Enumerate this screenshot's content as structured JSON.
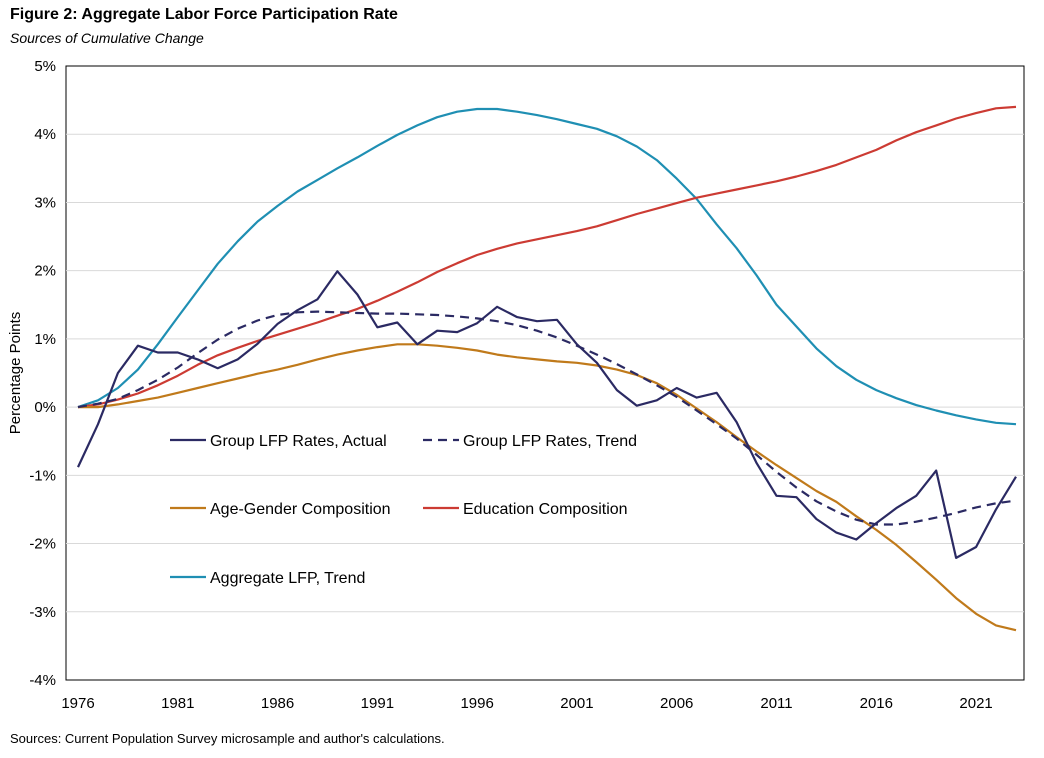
{
  "title": "Figure 2: Aggregate Labor Force Participation Rate",
  "subtitle": "Sources of Cumulative Change",
  "source": "Sources: Current Population Survey microsample and author's calculations.",
  "chart_data": {
    "type": "line",
    "ylabel": "Percentage Points",
    "xlabel": "",
    "xlim": [
      1976,
      2023
    ],
    "ylim": [
      -4,
      5
    ],
    "x_ticks": [
      1976,
      1981,
      1986,
      1991,
      1996,
      2001,
      2006,
      2011,
      2016,
      2021
    ],
    "x_tick_labels": [
      "1976",
      "1981",
      "1986",
      "1991",
      "1996",
      "2001",
      "2006",
      "2011",
      "2016",
      "2021"
    ],
    "y_ticks": [
      5,
      4,
      3,
      2,
      1,
      0,
      -1,
      -2,
      -3,
      -4
    ],
    "y_tick_labels": [
      "5%",
      "4%",
      "3%",
      "2%",
      "1%",
      "0%",
      "-1%",
      "-2%",
      "-3%",
      "-4%"
    ],
    "gridlines": "horizontal",
    "legend_position": "lower-left inside",
    "series": [
      {
        "name": "Group LFP Rates, Actual",
        "color": "#2b2a63",
        "dash": "solid",
        "x": [
          1976,
          1977,
          1978,
          1979,
          1980,
          1981,
          1982,
          1983,
          1984,
          1985,
          1986,
          1987,
          1988,
          1989,
          1990,
          1991,
          1992,
          1993,
          1994,
          1995,
          1996,
          1997,
          1998,
          1999,
          2000,
          2001,
          2002,
          2003,
          2004,
          2005,
          2006,
          2007,
          2008,
          2009,
          2010,
          2011,
          2012,
          2013,
          2014,
          2015,
          2016,
          2017,
          2018,
          2019,
          2020,
          2021,
          2022,
          2023
        ],
        "values": [
          -0.88,
          -0.25,
          0.5,
          0.9,
          0.8,
          0.8,
          0.7,
          0.57,
          0.7,
          0.93,
          1.22,
          1.42,
          1.58,
          1.99,
          1.65,
          1.17,
          1.24,
          0.92,
          1.12,
          1.1,
          1.23,
          1.47,
          1.32,
          1.26,
          1.28,
          0.92,
          0.65,
          0.25,
          0.02,
          0.1,
          0.28,
          0.14,
          0.21,
          -0.22,
          -0.82,
          -1.3,
          -1.32,
          -1.64,
          -1.84,
          -1.94,
          -1.7,
          -1.48,
          -1.3,
          -0.93,
          -2.21,
          -2.05,
          -1.5,
          -1.02
        ]
      },
      {
        "name": "Group LFP Rates, Trend",
        "color": "#2b2a63",
        "dash": "dashed",
        "x": [
          1976,
          1977,
          1978,
          1979,
          1980,
          1981,
          1982,
          1983,
          1984,
          1985,
          1986,
          1987,
          1988,
          1989,
          1990,
          1991,
          1992,
          1993,
          1994,
          1995,
          1996,
          1997,
          1998,
          1999,
          2000,
          2001,
          2002,
          2003,
          2004,
          2005,
          2006,
          2007,
          2008,
          2009,
          2010,
          2011,
          2012,
          2013,
          2014,
          2015,
          2016,
          2017,
          2018,
          2019,
          2020,
          2021,
          2022,
          2023
        ],
        "values": [
          0.0,
          0.05,
          0.12,
          0.25,
          0.4,
          0.58,
          0.79,
          0.99,
          1.15,
          1.27,
          1.35,
          1.39,
          1.4,
          1.39,
          1.38,
          1.37,
          1.37,
          1.36,
          1.35,
          1.33,
          1.3,
          1.26,
          1.2,
          1.12,
          1.02,
          0.9,
          0.77,
          0.63,
          0.48,
          0.32,
          0.15,
          -0.05,
          -0.25,
          -0.46,
          -0.7,
          -0.95,
          -1.18,
          -1.38,
          -1.53,
          -1.65,
          -1.72,
          -1.72,
          -1.68,
          -1.62,
          -1.55,
          -1.47,
          -1.41,
          -1.37
        ]
      },
      {
        "name": "Age-Gender Composition",
        "color": "#c07a1b",
        "dash": "solid",
        "x": [
          1976,
          1977,
          1978,
          1979,
          1980,
          1981,
          1982,
          1983,
          1984,
          1985,
          1986,
          1987,
          1988,
          1989,
          1990,
          1991,
          1992,
          1993,
          1994,
          1995,
          1996,
          1997,
          1998,
          1999,
          2000,
          2001,
          2002,
          2003,
          2004,
          2005,
          2006,
          2007,
          2008,
          2009,
          2010,
          2011,
          2012,
          2013,
          2014,
          2015,
          2016,
          2017,
          2018,
          2019,
          2020,
          2021,
          2022,
          2023
        ],
        "values": [
          0.0,
          0.0,
          0.04,
          0.09,
          0.14,
          0.21,
          0.28,
          0.35,
          0.42,
          0.49,
          0.55,
          0.62,
          0.7,
          0.77,
          0.83,
          0.88,
          0.92,
          0.92,
          0.9,
          0.87,
          0.83,
          0.77,
          0.73,
          0.7,
          0.67,
          0.65,
          0.61,
          0.55,
          0.47,
          0.35,
          0.18,
          -0.02,
          -0.22,
          -0.44,
          -0.65,
          -0.85,
          -1.04,
          -1.23,
          -1.39,
          -1.6,
          -1.8,
          -2.02,
          -2.27,
          -2.53,
          -2.8,
          -3.03,
          -3.2,
          -3.27
        ]
      },
      {
        "name": "Education Composition",
        "color": "#cc3b33",
        "dash": "solid",
        "x": [
          1976,
          1977,
          1978,
          1979,
          1980,
          1981,
          1982,
          1983,
          1984,
          1985,
          1986,
          1987,
          1988,
          1989,
          1990,
          1991,
          1992,
          1993,
          1994,
          1995,
          1996,
          1997,
          1998,
          1999,
          2000,
          2001,
          2002,
          2003,
          2004,
          2005,
          2006,
          2007,
          2008,
          2009,
          2010,
          2011,
          2012,
          2013,
          2014,
          2015,
          2016,
          2017,
          2018,
          2019,
          2020,
          2021,
          2022,
          2023
        ],
        "values": [
          0.0,
          0.04,
          0.11,
          0.2,
          0.32,
          0.46,
          0.62,
          0.76,
          0.87,
          0.97,
          1.06,
          1.15,
          1.24,
          1.34,
          1.44,
          1.56,
          1.69,
          1.83,
          1.98,
          2.11,
          2.23,
          2.32,
          2.4,
          2.46,
          2.52,
          2.58,
          2.65,
          2.74,
          2.83,
          2.91,
          2.99,
          3.07,
          3.13,
          3.19,
          3.25,
          3.31,
          3.38,
          3.46,
          3.55,
          3.66,
          3.77,
          3.91,
          4.03,
          4.13,
          4.23,
          4.31,
          4.38,
          4.4
        ]
      },
      {
        "name": "Aggregate LFP, Trend",
        "color": "#1f8fb3",
        "dash": "solid",
        "x": [
          1976,
          1977,
          1978,
          1979,
          1980,
          1981,
          1982,
          1983,
          1984,
          1985,
          1986,
          1987,
          1988,
          1989,
          1990,
          1991,
          1992,
          1993,
          1994,
          1995,
          1996,
          1997,
          1998,
          1999,
          2000,
          2001,
          2002,
          2003,
          2004,
          2005,
          2006,
          2007,
          2008,
          2009,
          2010,
          2011,
          2012,
          2013,
          2014,
          2015,
          2016,
          2017,
          2018,
          2019,
          2020,
          2021,
          2022,
          2023
        ],
        "values": [
          0.0,
          0.1,
          0.28,
          0.55,
          0.92,
          1.32,
          1.71,
          2.1,
          2.43,
          2.72,
          2.95,
          3.16,
          3.33,
          3.5,
          3.66,
          3.83,
          3.99,
          4.13,
          4.25,
          4.33,
          4.37,
          4.37,
          4.33,
          4.28,
          4.22,
          4.15,
          4.08,
          3.97,
          3.82,
          3.62,
          3.35,
          3.05,
          2.68,
          2.33,
          1.93,
          1.5,
          1.18,
          0.86,
          0.6,
          0.4,
          0.25,
          0.13,
          0.03,
          -0.05,
          -0.12,
          -0.18,
          -0.23,
          -0.25
        ]
      }
    ]
  }
}
